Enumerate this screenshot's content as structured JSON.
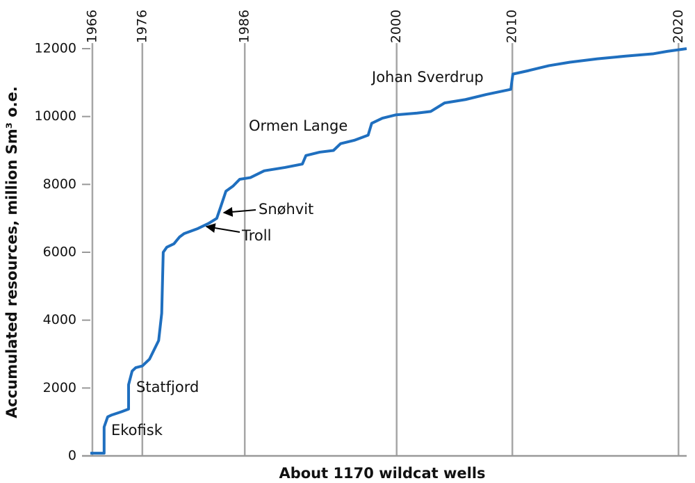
{
  "chart_data": {
    "type": "line",
    "xlabel": "About 1170 wildcat wells",
    "ylabel": "Accumulated resources, million Sm³ o.e.",
    "x": [
      0,
      27,
      27,
      34,
      41,
      61,
      75,
      75,
      82,
      89,
      102,
      116,
      134,
      140,
      143,
      150,
      164,
      175,
      184,
      211,
      232,
      248,
      256,
      266,
      280,
      293,
      314,
      341,
      382,
      416,
      423,
      450,
      477,
      491,
      518,
      545,
      552,
      573,
      600,
      641,
      668,
      695,
      736,
      777,
      825,
      829,
      859,
      900,
      941,
      995,
      1050,
      1105,
      1132,
      1170
    ],
    "series": [
      {
        "name": "Accumulated resources",
        "color": "#1f6fbf",
        "values": [
          80,
          80,
          850,
          1150,
          1200,
          1300,
          1380,
          2100,
          2500,
          2600,
          2650,
          2850,
          3400,
          4200,
          6000,
          6150,
          6250,
          6450,
          6550,
          6700,
          6850,
          7000,
          7350,
          7800,
          7950,
          8150,
          8200,
          8400,
          8500,
          8600,
          8850,
          8950,
          9000,
          9200,
          9300,
          9450,
          9800,
          9950,
          10050,
          10100,
          10150,
          10400,
          10500,
          10650,
          10800,
          11250,
          11350,
          11500,
          11600,
          11700,
          11780,
          11850,
          11920,
          12000
        ]
      }
    ],
    "xlim": [
      0,
      1170
    ],
    "xticks": [
      {
        "value": 4,
        "label": "1966"
      },
      {
        "value": 102,
        "label": "1976"
      },
      {
        "value": 303,
        "label": "1986"
      },
      {
        "value": 601,
        "label": "2000"
      },
      {
        "value": 828,
        "label": "2010"
      },
      {
        "value": 1154,
        "label": "2020"
      }
    ],
    "ylim": [
      0,
      12000
    ],
    "yticks": [
      0,
      2000,
      4000,
      6000,
      8000,
      10000,
      12000
    ],
    "annotations": [
      "Ekofisk",
      "Statfjord",
      "Troll",
      "Snøhvit",
      "Ormen Lange",
      "Johan Sverdrup"
    ],
    "grid": true
  }
}
